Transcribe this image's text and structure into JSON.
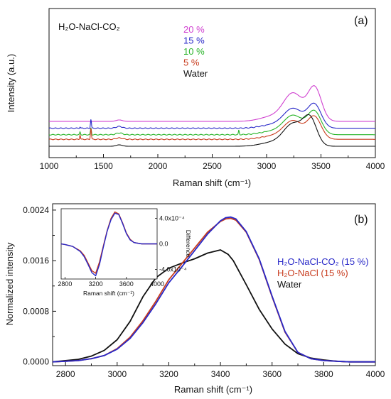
{
  "chart_data": [
    {
      "type": "line",
      "panel_label": "(a)",
      "title": "H₂O-NaCl-CO₂",
      "xlabel": "Raman shift (cm⁻¹)",
      "ylabel": "Intensity (a.u.)",
      "xlim": [
        1000,
        4000
      ],
      "xticks": [
        1000,
        1500,
        2000,
        2500,
        3000,
        3500,
        4000
      ],
      "y_ticks_shown": false,
      "legend_position": "top-center",
      "series": [
        {
          "name": "20 %",
          "color": "#d040d0",
          "baseline": 0.54,
          "peak_height": 1.24,
          "peak_x": 3442,
          "band_1640": 0.03,
          "band_1385": 0.0,
          "sharp_peaks": []
        },
        {
          "name": "15 %",
          "color": "#2828c8",
          "baseline": 0.39,
          "peak_height": 0.87,
          "peak_x": 3440,
          "band_1640": 0.04,
          "band_1385": 0.2,
          "sharp_peaks": [
            [
              1285,
              0.03
            ]
          ]
        },
        {
          "name": "10 %",
          "color": "#28b428",
          "baseline": 0.25,
          "peak_height": 0.85,
          "peak_x": 3440,
          "band_1640": 0.04,
          "band_1385": 0.15,
          "sharp_peaks": [
            [
              1285,
              0.06
            ],
            [
              2745,
              0.1
            ]
          ]
        },
        {
          "name": "5 %",
          "color": "#c83c1e",
          "baseline": 0.15,
          "peak_height": 0.82,
          "peak_x": 3440,
          "band_1640": 0.03,
          "band_1385": 0.25,
          "sharp_peaks": [
            [
              1285,
              0.1
            ]
          ]
        },
        {
          "name": "Water",
          "color": "#111111",
          "baseline": 0.0,
          "peak_height": 0.98,
          "peak_x": 3400,
          "band_1640": 0.03,
          "band_1385": 0.0,
          "sharp_peaks": []
        }
      ]
    },
    {
      "type": "line",
      "panel_label": "(b)",
      "xlabel": "Raman shift (cm⁻¹)",
      "ylabel": "Normalized intensity",
      "xlim": [
        2750,
        4000
      ],
      "ylim": [
        -6e-05,
        0.0025
      ],
      "xticks": [
        2800,
        3000,
        3200,
        3400,
        3600,
        3800,
        4000
      ],
      "yticks": [
        0.0,
        0.0008,
        0.0016,
        0.0024
      ],
      "ytick_labels": [
        "0.0000",
        "0.0008",
        "0.0016",
        "0.0024"
      ],
      "legend_position": "right",
      "series": [
        {
          "name": "H₂O-NaCl-CO₂ (15 %)",
          "color": "#2828c8",
          "x": [
            2750,
            2800,
            2850,
            2900,
            2950,
            3000,
            3050,
            3100,
            3150,
            3200,
            3250,
            3300,
            3350,
            3400,
            3420,
            3440,
            3460,
            3500,
            3550,
            3600,
            3650,
            3700,
            3750,
            3800,
            3850,
            3900,
            4000
          ],
          "y": [
            0.0,
            1e-05,
            2e-05,
            5e-05,
            0.0001,
            0.0002,
            0.00037,
            0.00062,
            0.00092,
            0.00125,
            0.0015,
            0.00176,
            0.00202,
            0.00223,
            0.00228,
            0.00229,
            0.00226,
            0.00206,
            0.00163,
            0.00104,
            0.00048,
            0.00015,
            5e-05,
            2e-05,
            1e-05,
            0.0,
            0.0
          ]
        },
        {
          "name": "H₂O-NaCl (15 %)",
          "color": "#c83c1e",
          "x": [
            2750,
            2800,
            2850,
            2900,
            2950,
            3000,
            3050,
            3100,
            3150,
            3200,
            3250,
            3300,
            3350,
            3400,
            3420,
            3440,
            3460,
            3500,
            3550,
            3600,
            3650,
            3700,
            3750,
            3800,
            3850,
            3900,
            4000
          ],
          "y": [
            0.0,
            1e-05,
            2e-05,
            5e-05,
            0.0001,
            0.00021,
            0.00039,
            0.00065,
            0.00096,
            0.0013,
            0.00155,
            0.0018,
            0.00205,
            0.00222,
            0.00226,
            0.00227,
            0.00224,
            0.00205,
            0.00162,
            0.00103,
            0.00047,
            0.00015,
            5e-05,
            2e-05,
            1e-05,
            0.0,
            0.0
          ]
        },
        {
          "name": "Water",
          "color": "#111111",
          "x": [
            2750,
            2800,
            2850,
            2900,
            2950,
            3000,
            3050,
            3100,
            3150,
            3200,
            3250,
            3300,
            3350,
            3400,
            3430,
            3450,
            3500,
            3550,
            3600,
            3650,
            3700,
            3750,
            3800,
            3850,
            3900,
            4000
          ],
          "y": [
            0.0,
            2e-05,
            4e-05,
            9e-05,
            0.00018,
            0.00035,
            0.00064,
            0.00103,
            0.00133,
            0.00148,
            0.00156,
            0.00163,
            0.00172,
            0.00177,
            0.0017,
            0.0016,
            0.00122,
            0.00083,
            0.00052,
            0.00028,
            0.00013,
            6e-05,
            3e-05,
            1e-05,
            0.0,
            0.0
          ]
        }
      ],
      "inset": {
        "xlabel": "Raman shift (cm⁻¹)",
        "ylabel": "Difference",
        "xlim": [
          2750,
          4000
        ],
        "ylim": [
          -0.00055,
          0.00055
        ],
        "xticks": [
          2800,
          3200,
          3600,
          4000
        ],
        "yticks": [
          -0.0004,
          0.0,
          0.0004
        ],
        "ytick_labels": [
          "-4.0x10⁻⁴",
          "0.0",
          "4.0x10⁻⁴"
        ],
        "series": [
          {
            "name": "H₂O-NaCl-CO₂ (15 %)",
            "color": "#2828c8",
            "x": [
              2750,
              2800,
              2900,
              3000,
              3050,
              3100,
              3150,
              3200,
              3250,
              3300,
              3350,
              3400,
              3450,
              3500,
              3550,
              3600,
              3650,
              3700,
              3800,
              3900,
              4000
            ],
            "y": [
              0.0,
              -1e-05,
              -4e-05,
              -0.00012,
              -0.0002,
              -0.00032,
              -0.00045,
              -0.0005,
              -0.00032,
              -5e-05,
              0.0002,
              0.00038,
              0.00048,
              0.00046,
              0.00032,
              0.00016,
              6e-05,
              2e-05,
              0.0,
              0.0,
              0.0
            ]
          },
          {
            "name": "H₂O-NaCl (15 %)",
            "color": "#c83c1e",
            "x": [
              2750,
              2800,
              2900,
              3000,
              3050,
              3100,
              3150,
              3200,
              3250,
              3300,
              3350,
              3400,
              3450,
              3500,
              3550,
              3600,
              3650,
              3700,
              3800,
              3900,
              4000
            ],
            "y": [
              0.0,
              -1e-05,
              -4e-05,
              -0.00011,
              -0.00018,
              -0.0003,
              -0.00042,
              -0.00046,
              -0.00028,
              -3e-05,
              0.00021,
              0.0004,
              0.0005,
              0.00047,
              0.00033,
              0.00017,
              7e-05,
              2e-05,
              0.0,
              0.0,
              0.0
            ]
          }
        ]
      }
    }
  ]
}
